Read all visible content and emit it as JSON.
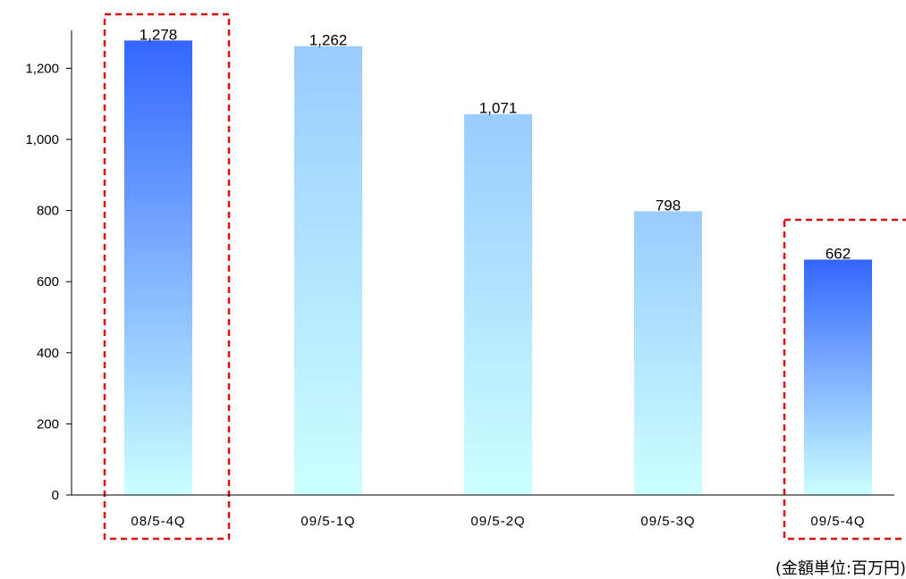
{
  "chart_data": {
    "type": "bar",
    "categories": [
      "08/5-4Q",
      "09/5-1Q",
      "09/5-2Q",
      "09/5-3Q",
      "09/5-4Q"
    ],
    "category_labels": [
      "08/5-4Q",
      "09/5-1Q",
      "09/5-2Q",
      "09/5-3Q",
      "09/5-4Q"
    ],
    "values": [
      1278,
      1262,
      1071,
      798,
      662
    ],
    "data_labels": [
      "1,278",
      "1,262",
      "1,071",
      "798",
      "662"
    ],
    "ylim": [
      0,
      1300
    ],
    "yticks": [
      0,
      200,
      400,
      600,
      800,
      1000,
      1200
    ],
    "ytick_labels": [
      "0",
      "200",
      "400",
      "600",
      "800",
      "1,000",
      "1,200"
    ],
    "highlighted": [
      true,
      false,
      false,
      false,
      true
    ],
    "grid": false,
    "title": "",
    "xlabel": "",
    "ylabel": ""
  },
  "unit_note": "(金額単位:百万円)",
  "colors": {
    "highlight_top": "#3366ff",
    "highlight_bottom": "#ccffff",
    "normal_top": "#99ccff",
    "normal_bottom": "#ccffff",
    "highlight_box": "#e01010",
    "axis": "#000000"
  }
}
